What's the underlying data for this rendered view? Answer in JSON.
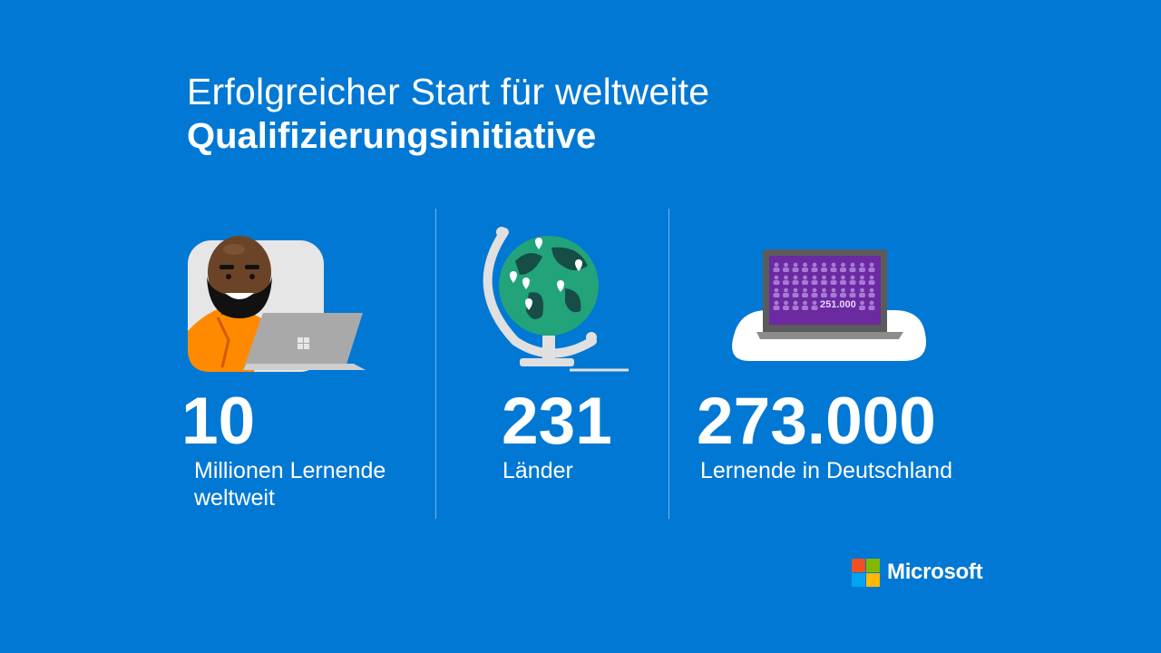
{
  "slide": {
    "title_line1": "Erfolgreicher Start für weltweite",
    "title_line2": "Qualifizierungsinitiative"
  },
  "stats": [
    {
      "value": "10",
      "label_line1": "Millionen Lernende",
      "label_line2": "weltweit"
    },
    {
      "value": "231",
      "label_line1": "Länder"
    },
    {
      "value": "273.000",
      "label_line1": "Lernende in Deutschland"
    }
  ],
  "laptop_screen_value": "251.000",
  "brand": {
    "name": "Microsoft",
    "logo_colors": [
      "#f25022",
      "#7fba00",
      "#00a4ef",
      "#ffb900"
    ]
  },
  "colors": {
    "background": "#0178d4",
    "text": "#ffffff"
  }
}
